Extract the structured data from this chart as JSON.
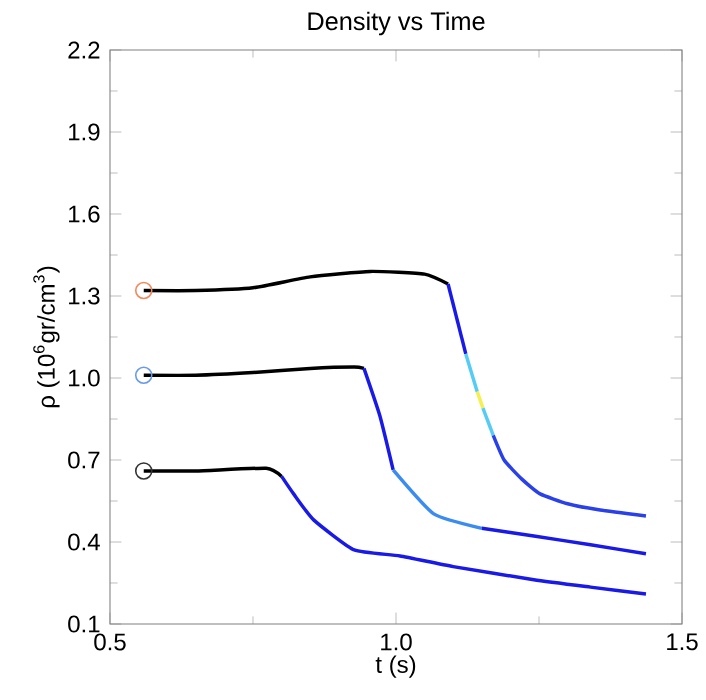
{
  "chart_data": {
    "type": "line",
    "title": "Density vs Time",
    "xlabel": "t (s)",
    "ylabel": "ρ  (10$^{6}$gr/cm$^{3}$)",
    "xlim": [
      0.5,
      1.5
    ],
    "xticks": [
      0.5,
      {
        "value": 1.0,
        "label": "1.0"
      },
      1.5
    ],
    "ylim": [
      0.1,
      2.2
    ],
    "yticks": [
      0.1,
      0.4,
      0.7,
      {
        "value": 1.0,
        "label": "1.0"
      },
      1.3,
      1.6,
      1.9,
      2.2
    ],
    "grid": false,
    "series": [
      {
        "color": "#000000",
        "x": [
          0.559,
          0.65,
          0.75,
          0.85,
          0.955,
          1.05,
          1.091
        ],
        "values": [
          1.32,
          1.32,
          1.33,
          1.37,
          1.39,
          1.38,
          1.344
        ]
      },
      {
        "color": "#1a1ae6",
        "x": [
          1.091,
          1.122
        ],
        "values": [
          1.344,
          1.088
        ]
      },
      {
        "color": "#55ccf5",
        "x": [
          1.122,
          1.142
        ],
        "values": [
          1.088,
          0.95
        ]
      },
      {
        "color": "#f5f050",
        "x": [
          1.142,
          1.152
        ],
        "values": [
          0.95,
          0.89
        ]
      },
      {
        "color": "#55ccf5",
        "x": [
          1.152,
          1.17
        ],
        "values": [
          0.89,
          0.79
        ]
      },
      {
        "color": "#2a40e8",
        "x": [
          1.17,
          1.189,
          1.22,
          1.252,
          1.3,
          1.357,
          1.437
        ],
        "values": [
          0.79,
          0.7,
          0.63,
          0.576,
          0.54,
          0.517,
          0.495
        ]
      },
      {
        "color": "#000000",
        "x": [
          0.559,
          0.65,
          0.75,
          0.85,
          0.927,
          0.944
        ],
        "values": [
          1.01,
          1.01,
          1.02,
          1.035,
          1.04,
          1.035
        ]
      },
      {
        "color": "#1a1ae6",
        "x": [
          0.944,
          0.972,
          0.995
        ],
        "values": [
          1.035,
          0.86,
          0.664
        ]
      },
      {
        "color": "#3a8cf0",
        "x": [
          0.995,
          1.066,
          1.15
        ],
        "values": [
          0.664,
          0.503,
          0.45
        ]
      },
      {
        "color": "#1a1ae6",
        "x": [
          1.15,
          1.241,
          1.34,
          1.437
        ],
        "values": [
          0.45,
          0.422,
          0.39,
          0.357
        ]
      },
      {
        "color": "#000000",
        "x": [
          0.559,
          0.65,
          0.773,
          0.8
        ],
        "values": [
          0.66,
          0.66,
          0.67,
          0.64
        ]
      },
      {
        "color": "#1a1ae6",
        "x": [
          0.8,
          0.821,
          0.856,
          0.927,
          1.007,
          1.1,
          1.241,
          1.34,
          1.437
        ],
        "values": [
          0.64,
          0.576,
          0.481,
          0.371,
          0.349,
          0.31,
          0.262,
          0.235,
          0.21
        ]
      },
      {
        "type": "scatter",
        "marker": "circle",
        "x": [
          0.559,
          0.559,
          0.559
        ],
        "values": [
          1.32,
          1.01,
          0.66
        ],
        "colors": [
          "#f08a5d",
          "#6a9be8",
          "#333333"
        ]
      }
    ]
  }
}
